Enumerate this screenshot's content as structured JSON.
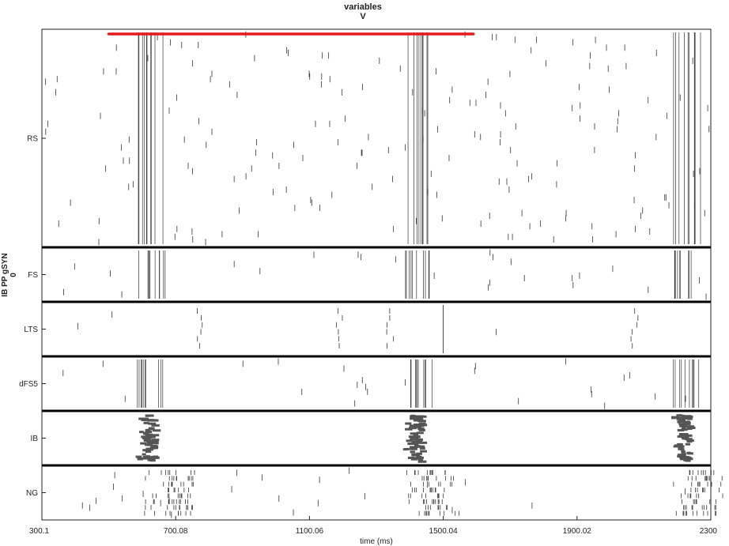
{
  "chart_data": {
    "type": "raster",
    "title_line1": "variables",
    "title_line2": "V",
    "xlabel": "time (ms)",
    "ylabel_line1": "IB PP gSYN",
    "ylabel_line2": "0",
    "xlim": [
      300.1,
      2300
    ],
    "xticks": [
      "300.1",
      "700.08",
      "1100.06",
      "1500.04",
      "1900.02",
      "2300"
    ],
    "xtick_values": [
      300.1,
      700.08,
      1100.06,
      1500.04,
      1900.02,
      2300
    ],
    "populations": [
      "RS",
      "FS",
      "LTS",
      "dFS5",
      "IB",
      "NG"
    ],
    "population_weights": [
      4,
      1,
      1,
      1,
      1,
      1
    ],
    "burst_centers_ms": [
      620,
      1420,
      2220
    ],
    "annotation": {
      "type": "red-bar",
      "x_start_ms": 500,
      "x_end_ms": 1590,
      "color": "#e41a1c"
    },
    "grid": false,
    "colors": {
      "spike": "#333333",
      "ib_spike": "#555555",
      "separator": "#000000",
      "axes": "#222222"
    }
  }
}
